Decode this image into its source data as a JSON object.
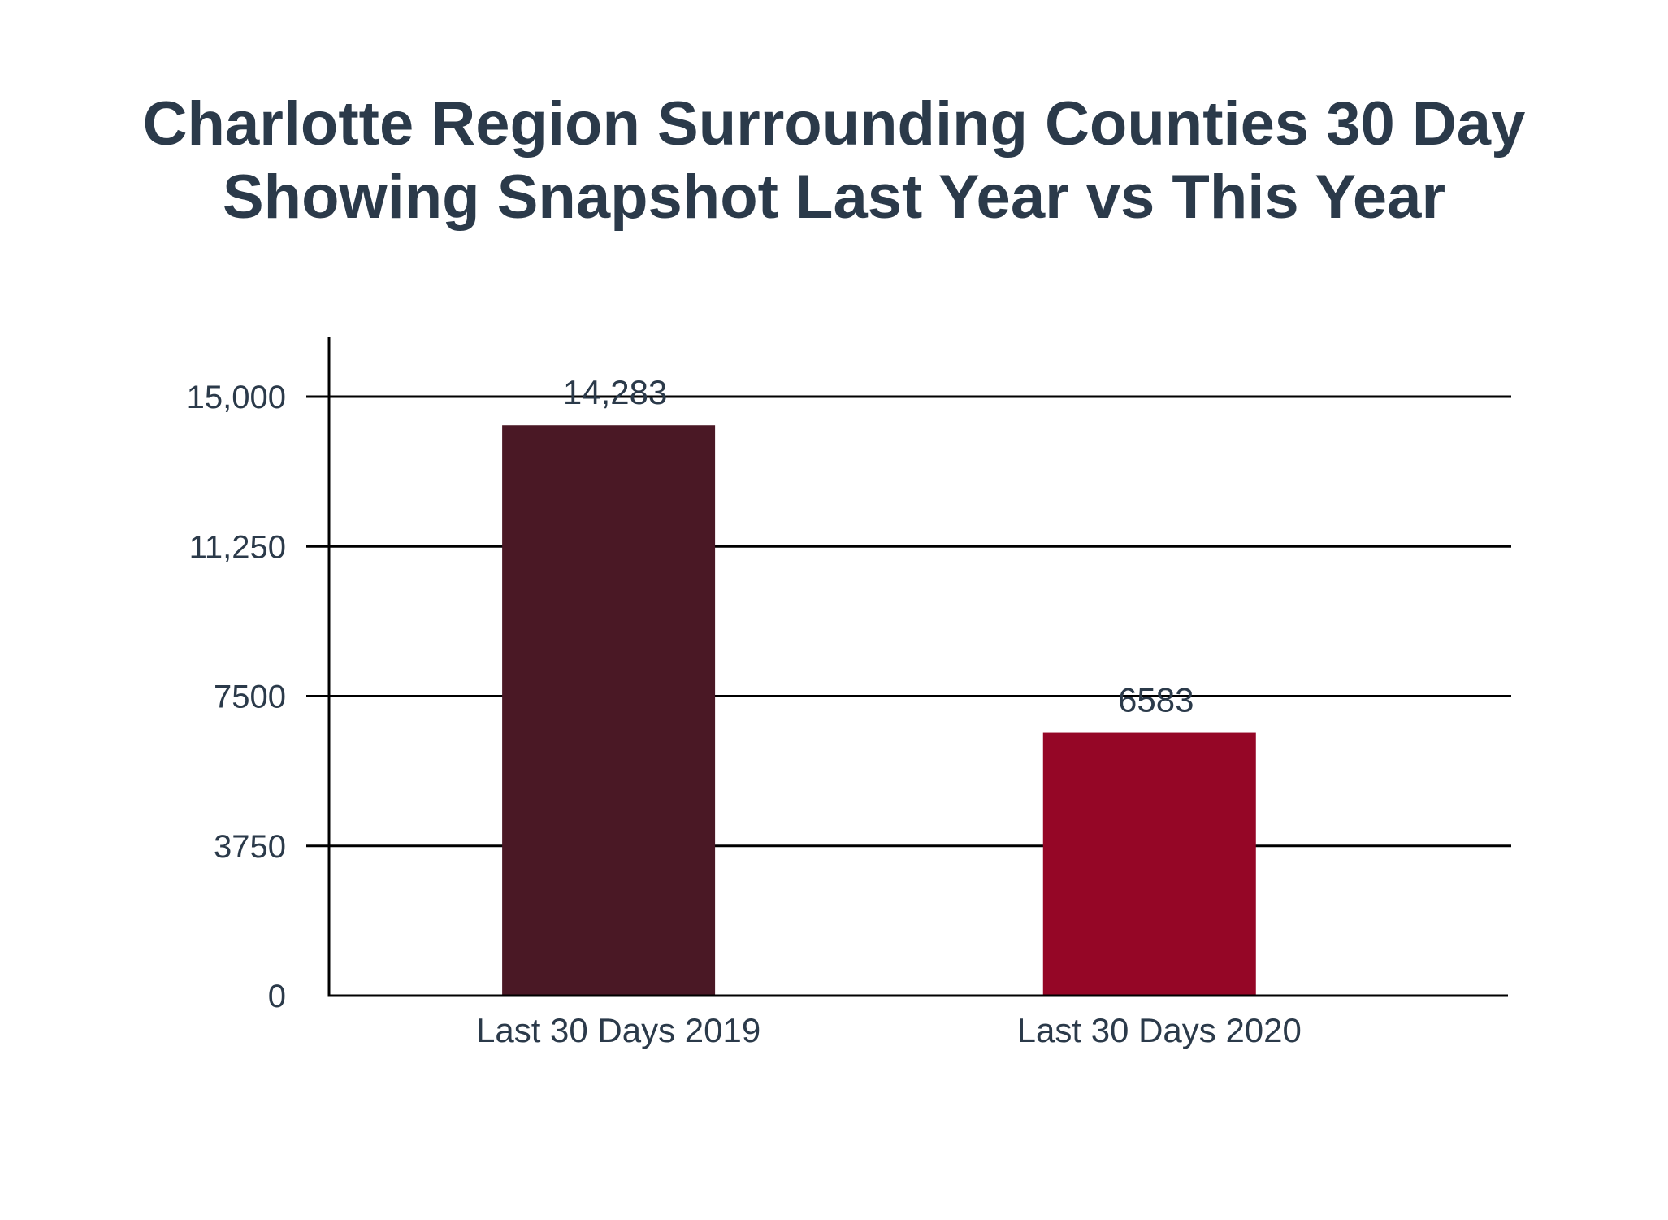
{
  "chart_data": {
    "type": "bar",
    "title_lines": [
      "Charlotte Region Surrounding Counties 30 Day",
      "Showing Snapshot Last Year vs This Year"
    ],
    "categories": [
      "Last 30 Days 2019",
      "Last 30 Days 2020"
    ],
    "values": [
      14283,
      6583
    ],
    "data_labels": [
      "14,283",
      "6583"
    ],
    "bar_colors": [
      "#4a1825",
      "#950626"
    ],
    "yticks": [
      0,
      3750,
      7500,
      11250,
      15000
    ],
    "ytick_labels": [
      "0",
      "3750",
      "7500",
      "11,250",
      "15,000"
    ],
    "ylim": [
      0,
      15000
    ],
    "grid": true,
    "text_color": "#2b3a4a",
    "axis_color": "#000000"
  }
}
